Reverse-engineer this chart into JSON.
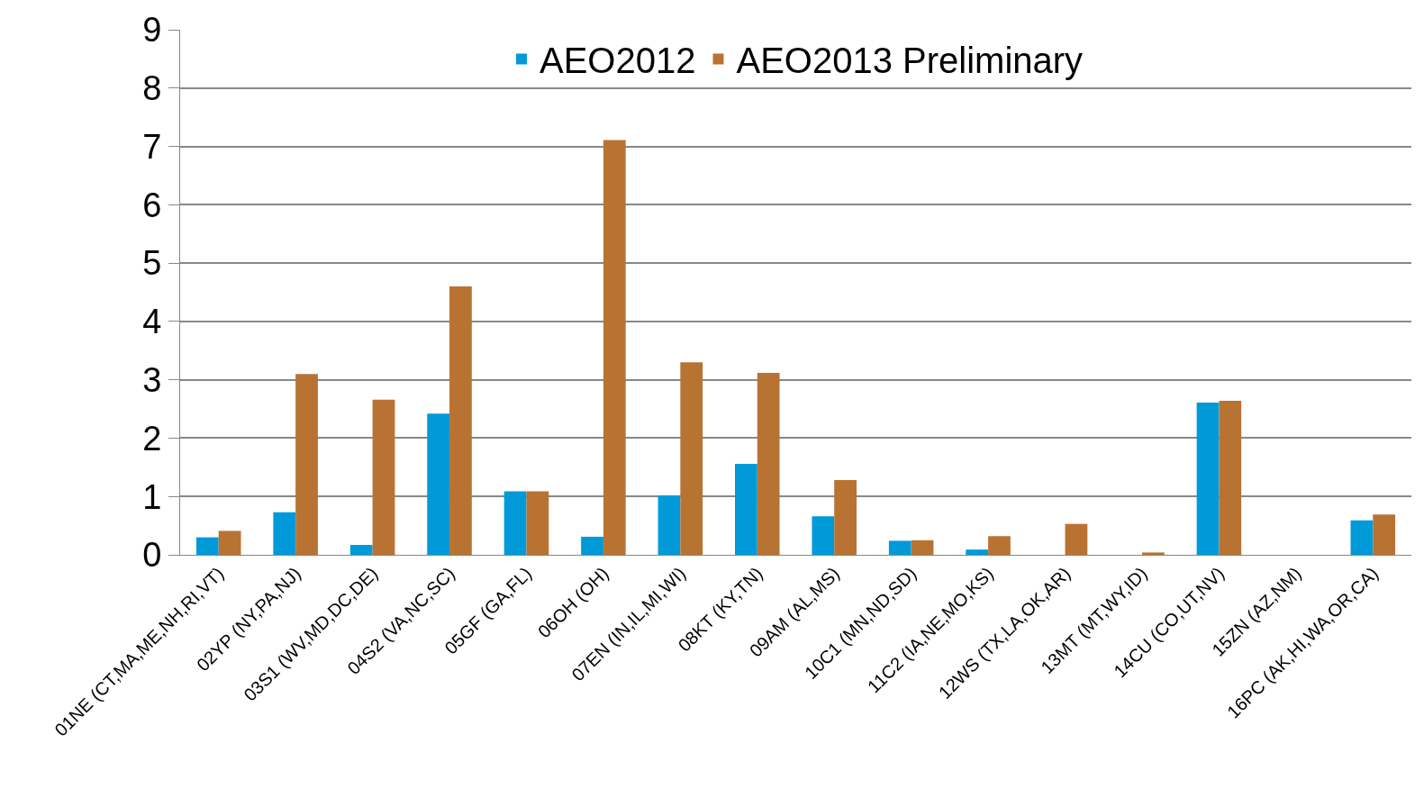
{
  "chart_data": {
    "type": "bar",
    "categories": [
      "01NE (CT,MA,ME,NH,RI,VT)",
      "02YP (NY,PA,NJ)",
      "03S1 (WV,MD,DC,DE)",
      "04S2 (VA,NC,SC)",
      "05GF (GA,FL)",
      "06OH (OH)",
      "07EN (IN,IL,MI,WI)",
      "08KT (KY,TN)",
      "09AM (AL,MS)",
      "10C1 (MN,ND,SD)",
      "11C2 (IA,NE,MO,KS)",
      "12WS (TX,LA,OK,AR)",
      "13MT (MT,WY,ID)",
      "14CU (CO,UT,NV)",
      "15ZN (AZ,NM)",
      "16PC (AK,HI,WA,OR,CA)"
    ],
    "series": [
      {
        "name": "AEO2012",
        "color": "#009ad9",
        "values": [
          0.3,
          0.73,
          0.17,
          2.42,
          1.09,
          0.31,
          1.02,
          1.56,
          0.66,
          0.24,
          0.09,
          0,
          0,
          2.61,
          0,
          0.59
        ]
      },
      {
        "name": "AEO2013 Preliminary",
        "color": "#b87333",
        "values": [
          0.41,
          3.1,
          2.66,
          4.6,
          1.09,
          7.11,
          3.3,
          3.12,
          1.28,
          0.25,
          0.32,
          0.53,
          0.04,
          2.64,
          0,
          0.69
        ]
      }
    ],
    "ylim": [
      0,
      9
    ],
    "yticks": [
      0,
      1,
      2,
      3,
      4,
      5,
      6,
      7,
      8,
      9
    ],
    "grid": "y",
    "legend": "top"
  }
}
